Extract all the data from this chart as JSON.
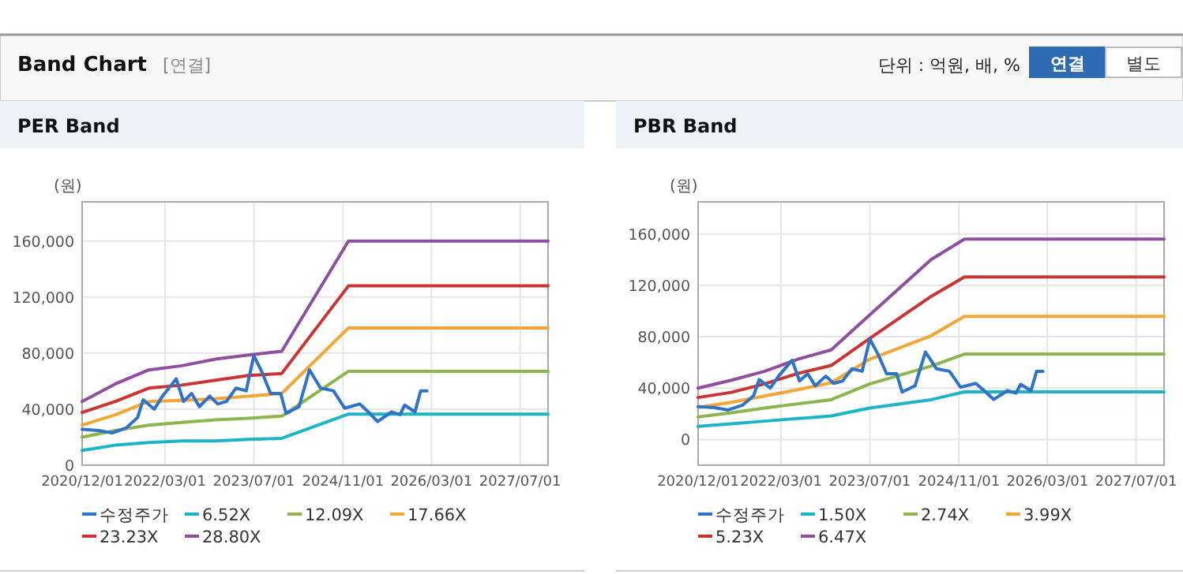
{
  "chart_data": [
    {
      "type": "other",
      "title": "Band Chart",
      "annotations": [
        "[연결]",
        "단위 : 억원, 배, %",
        "연결",
        "별도"
      ]
    },
    {
      "type": "line",
      "title": "PER Band",
      "ylabel": "(원)",
      "xlim": [
        "2020-12-01",
        "2027-12-01"
      ],
      "xticks": [
        {
          "value": "2020-12-01",
          "label": "2020/12/01"
        },
        {
          "value": "2022-03-01",
          "label": "2022/03/01"
        },
        {
          "value": "2023-07-01",
          "label": "2023/07/01"
        },
        {
          "value": "2024-11-01",
          "label": "2024/11/01"
        },
        {
          "value": "2026-03-01",
          "label": "2026/03/01"
        },
        {
          "value": "2027-07-01",
          "label": "2027/07/01"
        }
      ],
      "ylim": [
        0,
        188000
      ],
      "yticks": [
        {
          "value": 0,
          "label": "0"
        },
        {
          "value": 40000,
          "label": "40,000"
        },
        {
          "value": 80000,
          "label": "80,000"
        },
        {
          "value": 120000,
          "label": "120,000"
        },
        {
          "value": 160000,
          "label": "160,000"
        }
      ],
      "grid": true,
      "legend": "bottom",
      "line_style": "solid",
      "marker": "none",
      "series": [
        {
          "name": "수정주가",
          "color": "#2f73c9",
          "x": [
            "2020-12-01",
            "2021-03-01",
            "2021-05-15",
            "2021-08-01",
            "2021-10-01",
            "2021-11-01",
            "2022-01-01",
            "2022-02-15",
            "2022-05-01",
            "2022-06-10",
            "2022-07-25",
            "2022-09-05",
            "2022-11-01",
            "2022-12-15",
            "2023-02-01",
            "2023-03-25",
            "2023-05-20",
            "2023-07-01",
            "2023-08-15",
            "2023-10-01",
            "2023-11-25",
            "2023-12-25",
            "2024-03-05",
            "2024-05-01",
            "2024-07-01",
            "2024-09-10",
            "2024-11-10",
            "2025-02-01",
            "2025-03-20",
            "2025-05-10",
            "2025-07-25",
            "2025-09-10",
            "2025-10-05",
            "2025-12-01",
            "2026-01-01",
            "2026-02-05"
          ],
          "values": [
            25600,
            24800,
            23000,
            26700,
            34000,
            46700,
            40000,
            49300,
            61700,
            45500,
            51200,
            41800,
            49300,
            43700,
            45500,
            55000,
            53100,
            78300,
            66300,
            51200,
            51200,
            36900,
            41800,
            68100,
            55000,
            53100,
            40700,
            43700,
            38000,
            31200,
            38000,
            36100,
            42900,
            38000,
            53100,
            53100
          ]
        },
        {
          "name": "6.52X",
          "color": "#1cb5c8",
          "x": [
            "2020-12-01",
            "2021-06-01",
            "2021-12-01",
            "2022-06-01",
            "2022-12-01",
            "2023-06-01",
            "2023-12-01",
            "2024-12-01",
            "2027-12-01"
          ],
          "values": [
            10500,
            14300,
            16200,
            17300,
            17300,
            18400,
            19200,
            36500,
            36500
          ]
        },
        {
          "name": "12.09X",
          "color": "#8cb54e",
          "x": [
            "2020-12-01",
            "2021-06-01",
            "2021-12-01",
            "2022-06-01",
            "2022-12-01",
            "2023-06-01",
            "2023-12-01",
            "2024-12-01",
            "2027-12-01"
          ],
          "values": [
            20000,
            24800,
            28600,
            30500,
            32400,
            33500,
            35000,
            67000,
            67000
          ]
        },
        {
          "name": "17.66X",
          "color": "#f5a535",
          "x": [
            "2020-12-01",
            "2021-06-01",
            "2021-12-01",
            "2022-06-01",
            "2022-12-01",
            "2023-06-01",
            "2023-12-01",
            "2024-12-01",
            "2027-12-01"
          ],
          "values": [
            28600,
            36000,
            45500,
            46300,
            47400,
            49300,
            51200,
            98000,
            98000
          ]
        },
        {
          "name": "23.23X",
          "color": "#cc3333",
          "x": [
            "2020-12-01",
            "2021-06-01",
            "2021-12-01",
            "2022-06-01",
            "2022-12-01",
            "2023-06-01",
            "2023-12-01",
            "2024-12-01",
            "2027-12-01"
          ],
          "values": [
            37600,
            45500,
            55000,
            57200,
            60600,
            64000,
            65500,
            128000,
            128000
          ]
        },
        {
          "name": "28.80X",
          "color": "#8e4f9e",
          "x": [
            "2020-12-01",
            "2021-06-01",
            "2021-12-01",
            "2022-06-01",
            "2022-12-01",
            "2023-06-01",
            "2023-12-01",
            "2024-12-01",
            "2027-12-01"
          ],
          "values": [
            45500,
            58000,
            68000,
            71000,
            75700,
            78700,
            81300,
            160000,
            160000
          ]
        }
      ]
    },
    {
      "type": "line",
      "title": "PBR Band",
      "ylabel": "(원)",
      "xlim": [
        "2020-12-01",
        "2027-12-01"
      ],
      "xticks": [
        {
          "value": "2020-12-01",
          "label": "2020/12/01"
        },
        {
          "value": "2022-03-01",
          "label": "2022/03/01"
        },
        {
          "value": "2023-07-01",
          "label": "2023/07/01"
        },
        {
          "value": "2024-11-01",
          "label": "2024/11/01"
        },
        {
          "value": "2026-03-01",
          "label": "2026/03/01"
        },
        {
          "value": "2027-07-01",
          "label": "2027/07/01"
        }
      ],
      "ylim": [
        -20000,
        185000
      ],
      "yticks": [
        {
          "value": 0,
          "label": "0"
        },
        {
          "value": 40000,
          "label": "40,000"
        },
        {
          "value": 80000,
          "label": "80,000"
        },
        {
          "value": 120000,
          "label": "120,000"
        },
        {
          "value": 160000,
          "label": "160,000"
        }
      ],
      "grid": true,
      "legend": "bottom",
      "line_style": "solid",
      "marker": "none",
      "series": [
        {
          "name": "수정주가",
          "color": "#2f73c9",
          "x": [
            "2020-12-01",
            "2021-03-01",
            "2021-05-15",
            "2021-08-01",
            "2021-10-01",
            "2021-11-01",
            "2022-01-01",
            "2022-02-15",
            "2022-05-01",
            "2022-06-10",
            "2022-07-25",
            "2022-09-05",
            "2022-11-01",
            "2022-12-15",
            "2023-02-01",
            "2023-03-25",
            "2023-05-20",
            "2023-07-01",
            "2023-08-15",
            "2023-10-01",
            "2023-11-25",
            "2023-12-25",
            "2024-03-05",
            "2024-05-01",
            "2024-07-01",
            "2024-09-10",
            "2024-11-10",
            "2025-02-01",
            "2025-03-20",
            "2025-05-10",
            "2025-07-25",
            "2025-09-10",
            "2025-10-05",
            "2025-12-01",
            "2026-01-01",
            "2026-02-05"
          ],
          "values": [
            25600,
            24800,
            23000,
            26700,
            34000,
            46700,
            40000,
            49300,
            61700,
            45500,
            51200,
            41800,
            49300,
            43700,
            45500,
            55000,
            53100,
            78300,
            66300,
            51200,
            51200,
            36900,
            41800,
            68100,
            55000,
            53100,
            40700,
            43700,
            38000,
            31200,
            38000,
            36100,
            42900,
            38000,
            53100,
            53100
          ]
        },
        {
          "name": "1.50X",
          "color": "#1cb5c8",
          "x": [
            "2020-12-01",
            "2021-06-01",
            "2021-12-01",
            "2022-06-01",
            "2022-12-01",
            "2023-07-01",
            "2024-06-01",
            "2024-12-01",
            "2027-12-01"
          ],
          "values": [
            10200,
            12200,
            14300,
            16300,
            18400,
            24500,
            31000,
            37100,
            37100
          ]
        },
        {
          "name": "2.74X",
          "color": "#8cb54e",
          "x": [
            "2020-12-01",
            "2021-06-01",
            "2021-12-01",
            "2022-06-01",
            "2022-12-01",
            "2023-07-01",
            "2024-06-01",
            "2024-12-01",
            "2027-12-01"
          ],
          "values": [
            17600,
            20800,
            24500,
            27800,
            31000,
            43300,
            57100,
            66500,
            66500
          ]
        },
        {
          "name": "3.99X",
          "color": "#f5a535",
          "x": [
            "2020-12-01",
            "2021-06-01",
            "2021-12-01",
            "2022-06-01",
            "2022-12-01",
            "2023-07-01",
            "2024-06-01",
            "2024-12-01",
            "2027-12-01"
          ],
          "values": [
            24900,
            29000,
            33900,
            38800,
            44100,
            62500,
            80800,
            95900,
            95900
          ]
        },
        {
          "name": "5.23X",
          "color": "#cc3333",
          "x": [
            "2020-12-01",
            "2021-06-01",
            "2021-12-01",
            "2022-06-01",
            "2022-12-01",
            "2023-07-01",
            "2024-06-01",
            "2024-12-01",
            "2027-12-01"
          ],
          "values": [
            32700,
            36700,
            43300,
            51400,
            57600,
            78800,
            111400,
            126500,
            126500
          ]
        },
        {
          "name": "6.47X",
          "color": "#8e4f9e",
          "x": [
            "2020-12-01",
            "2021-06-01",
            "2021-12-01",
            "2022-06-01",
            "2022-12-01",
            "2023-07-01",
            "2024-06-01",
            "2024-12-01",
            "2027-12-01"
          ],
          "values": [
            40000,
            46100,
            53100,
            62500,
            69800,
            97100,
            140000,
            156000,
            156000
          ]
        }
      ]
    }
  ]
}
